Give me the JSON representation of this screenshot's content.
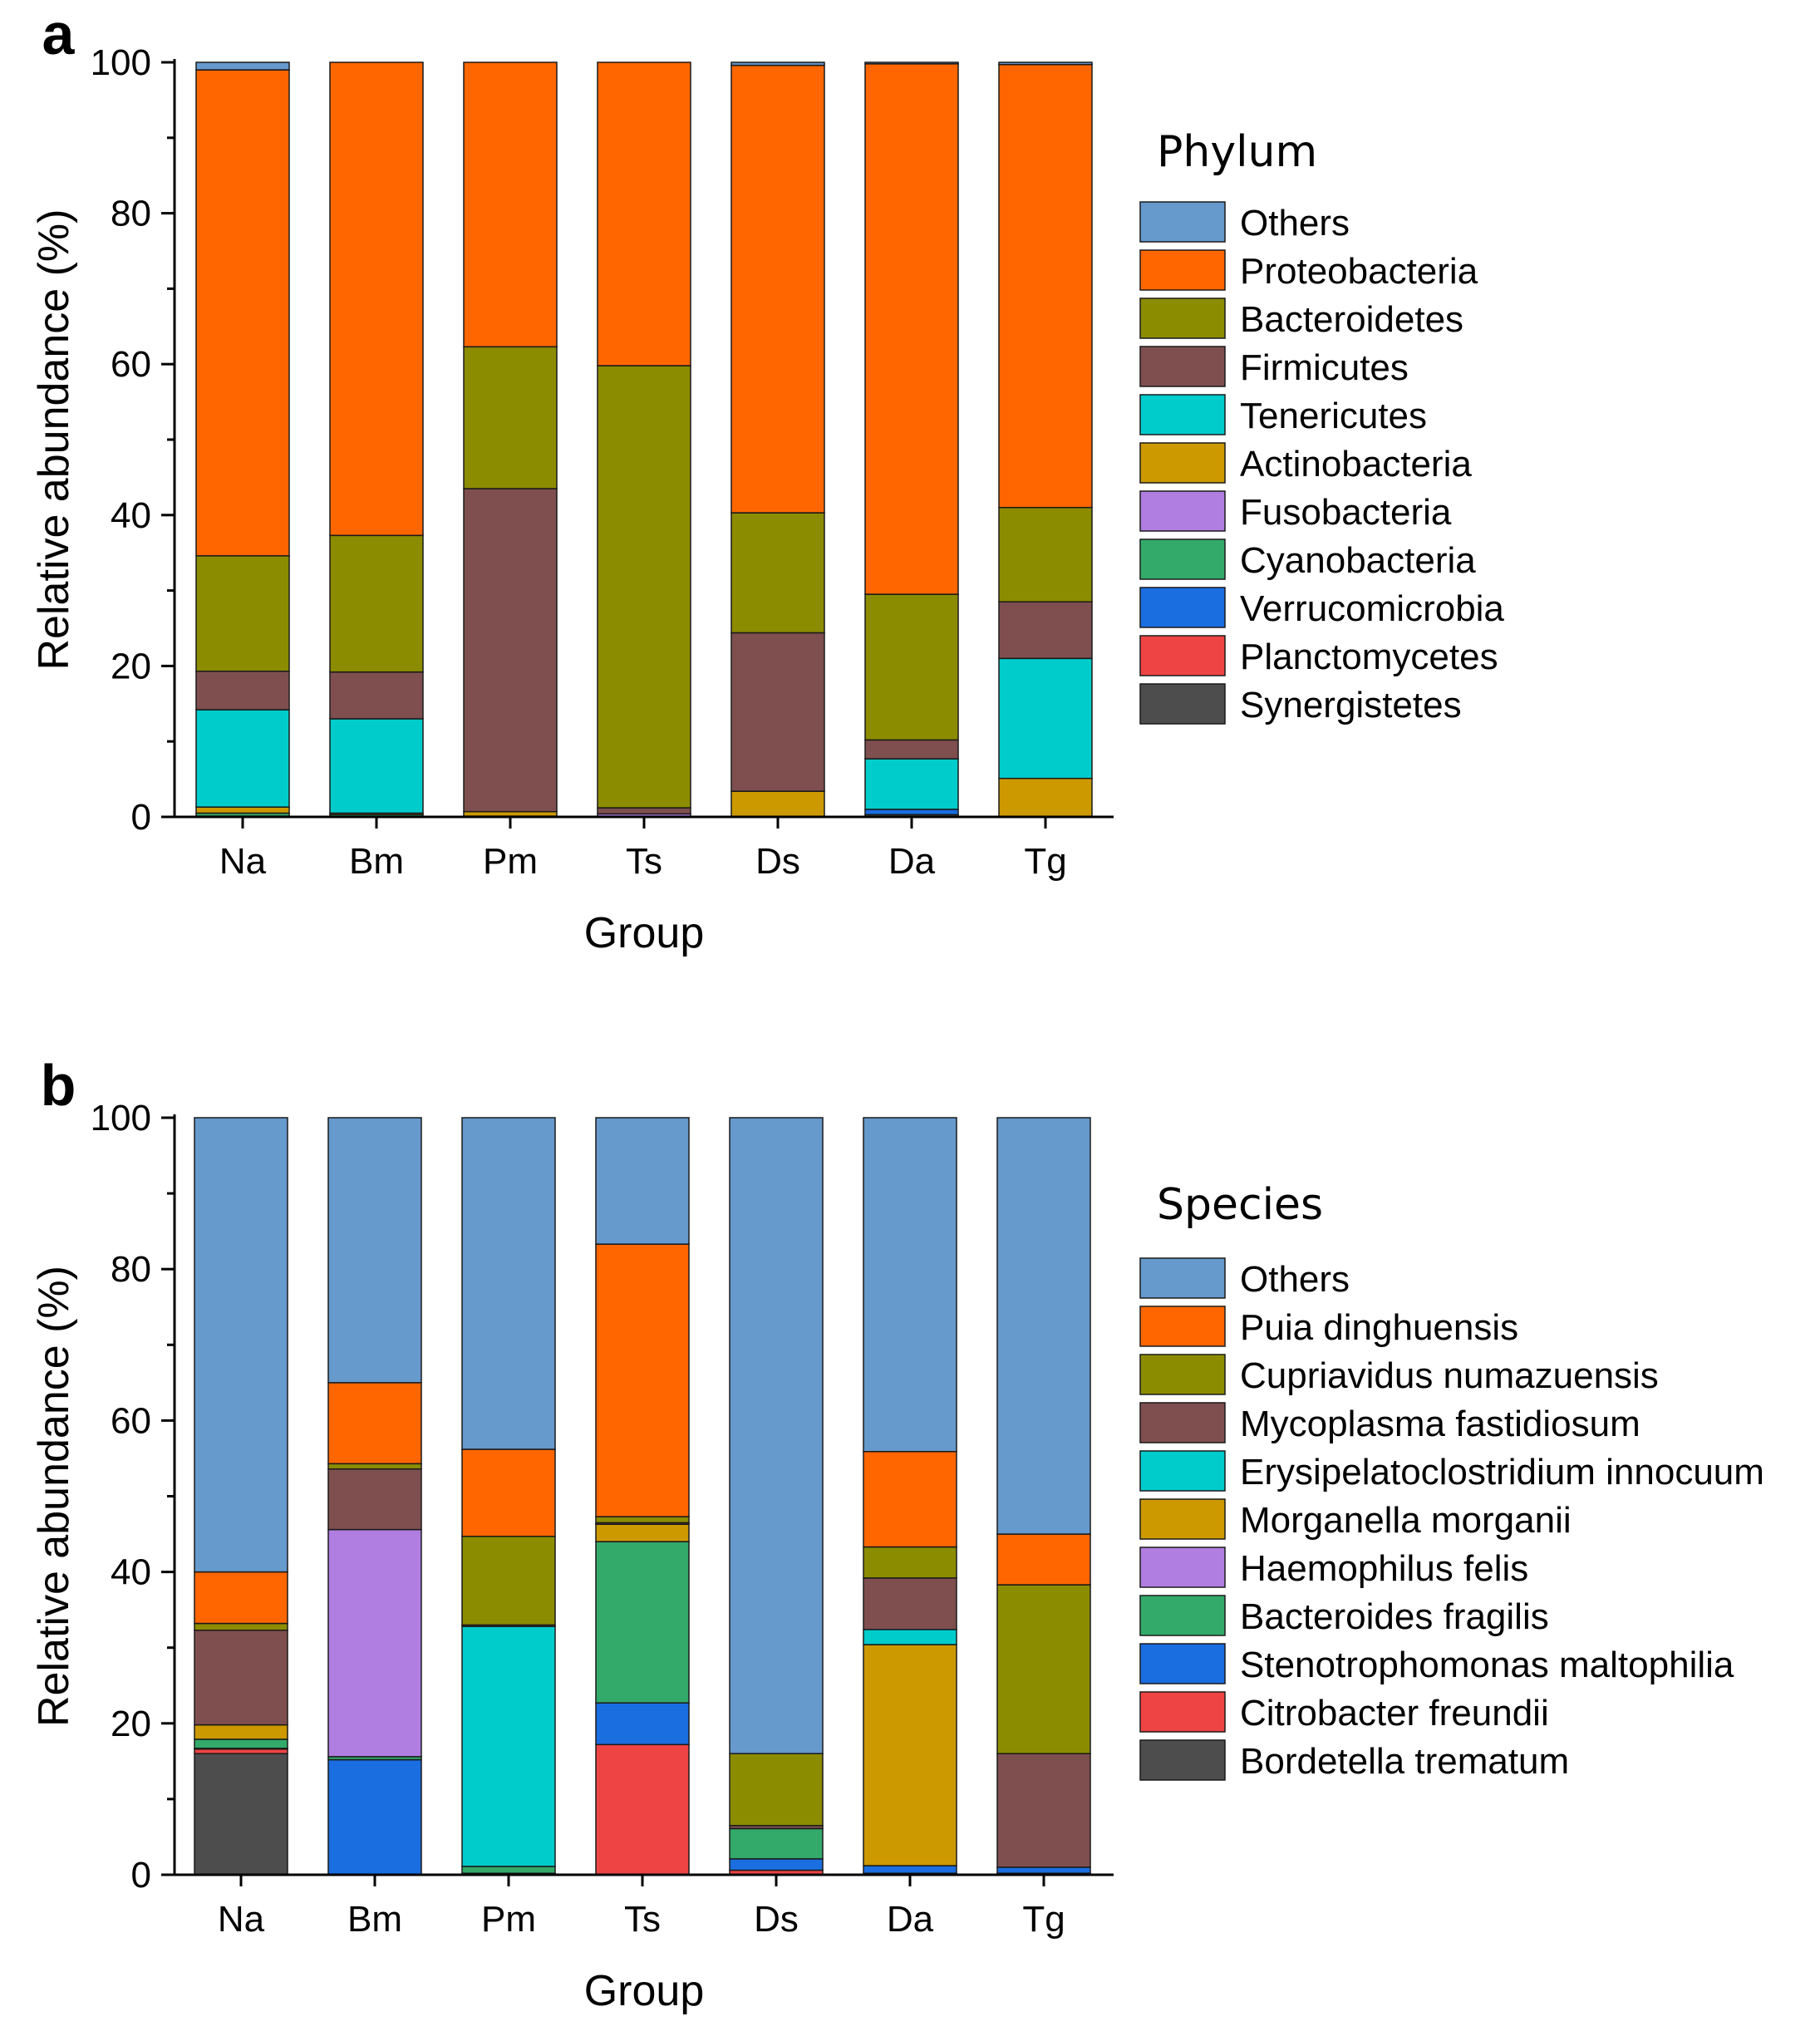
{
  "figure": {
    "series_colors": {
      "others": "#6699cc",
      "orange": "#ff6600",
      "olive": "#8c8c00",
      "brown": "#7f4f4f",
      "cyan": "#00cccc",
      "gold": "#cc9900",
      "violet": "#b07ee0",
      "green": "#33aa6a",
      "blue": "#1a6ee0",
      "red": "#ee4444",
      "gray": "#4d4d4d"
    }
  },
  "chart_data": [
    {
      "panel_label": "a",
      "type": "bar",
      "stacked": true,
      "title": "",
      "xlabel": "Group",
      "ylabel": "Relative abundance (%)",
      "ylim": [
        0,
        100
      ],
      "yticks": [
        "0",
        "20",
        "40",
        "60",
        "80",
        "100"
      ],
      "categories": [
        "Na",
        "Bm",
        "Pm",
        "Ts",
        "Ds",
        "Da",
        "Tg"
      ],
      "legend_title": "Phylum",
      "legend_position": "right",
      "series": [
        {
          "name": "Synergistetes",
          "color": "#4d4d4d",
          "values": [
            0.1,
            0,
            0,
            0,
            0,
            0.3,
            0
          ]
        },
        {
          "name": "Planctomycetes",
          "color": "#ee4444",
          "values": [
            0,
            0,
            0,
            0,
            0,
            0,
            0
          ]
        },
        {
          "name": "Verrucomicrobia",
          "color": "#1a6ee0",
          "values": [
            0,
            0,
            0,
            0,
            0,
            0.7,
            0
          ]
        },
        {
          "name": "Cyanobacteria",
          "color": "#33aa6a",
          "values": [
            0.4,
            0.3,
            0,
            0,
            0,
            0,
            0
          ]
        },
        {
          "name": "Fusobacteria",
          "color": "#b07ee0",
          "values": [
            0,
            0,
            0.1,
            0.4,
            0,
            0,
            0
          ]
        },
        {
          "name": "Actinobacteria",
          "color": "#cc9900",
          "values": [
            0.8,
            0.2,
            0.6,
            0,
            3.4,
            0,
            5.1
          ]
        },
        {
          "name": "Tenericutes",
          "color": "#00cccc",
          "values": [
            12.9,
            12.5,
            0,
            0,
            0,
            6.7,
            15.9
          ]
        },
        {
          "name": "Firmicutes",
          "color": "#7f4f4f",
          "values": [
            5.1,
            6.2,
            42.8,
            0.8,
            21.0,
            2.5,
            7.5
          ]
        },
        {
          "name": "Bacteroidetes",
          "color": "#8c8c00",
          "values": [
            15.3,
            18.1,
            18.8,
            58.6,
            15.9,
            19.3,
            12.5
          ]
        },
        {
          "name": "Proteobacteria",
          "color": "#ff6600",
          "values": [
            64.4,
            62.7,
            37.7,
            40.2,
            59.3,
            70.3,
            58.7
          ]
        },
        {
          "name": "Others",
          "color": "#6699cc",
          "values": [
            1.0,
            0,
            0,
            0,
            0.4,
            0.2,
            0.3
          ]
        }
      ],
      "legend_order": [
        "Others",
        "Proteobacteria",
        "Bacteroidetes",
        "Firmicutes",
        "Tenericutes",
        "Actinobacteria",
        "Fusobacteria",
        "Cyanobacteria",
        "Verrucomicrobia",
        "Planctomycetes",
        "Synergistetes"
      ]
    },
    {
      "panel_label": "b",
      "type": "bar",
      "stacked": true,
      "title": "",
      "xlabel": "Group",
      "ylabel": "Relative abundance (%)",
      "ylim": [
        0,
        100
      ],
      "yticks": [
        "0",
        "20",
        "40",
        "60",
        "80",
        "100"
      ],
      "categories": [
        "Na",
        "Bm",
        "Pm",
        "Ts",
        "Ds",
        "Da",
        "Tg"
      ],
      "legend_title": "Species",
      "legend_position": "right",
      "series": [
        {
          "name": "Bordetella trematum",
          "color": "#4d4d4d",
          "values": [
            16.0,
            0,
            0,
            0,
            0,
            0,
            0
          ]
        },
        {
          "name": "Citrobacter freundii",
          "color": "#ee4444",
          "values": [
            0.6,
            0,
            0,
            17.2,
            0.6,
            0.2,
            0.2
          ]
        },
        {
          "name": "Stenotrophomonas maltophilia",
          "color": "#1a6ee0",
          "values": [
            0.1,
            15.2,
            0.2,
            5.5,
            1.5,
            1.0,
            0.8
          ]
        },
        {
          "name": "Bacteroides fragilis",
          "color": "#33aa6a",
          "values": [
            1.2,
            0.4,
            0.9,
            21.3,
            4.0,
            0,
            0
          ]
        },
        {
          "name": "Haemophilus felis",
          "color": "#b07ee0",
          "values": [
            0,
            30.0,
            0,
            0,
            0,
            0,
            0
          ]
        },
        {
          "name": "Morganella morganii",
          "color": "#cc9900",
          "values": [
            1.9,
            0,
            0,
            2.3,
            0,
            29.2,
            0
          ]
        },
        {
          "name": "Erysipelatoclostridium innocuum",
          "color": "#00cccc",
          "values": [
            0,
            0,
            31.7,
            0,
            0,
            2.0,
            0
          ]
        },
        {
          "name": "Mycoplasma fastidiosum",
          "color": "#7f4f4f",
          "values": [
            12.5,
            8.0,
            0.2,
            0.2,
            0.4,
            6.8,
            15.0
          ]
        },
        {
          "name": "Cupriavidus numazuensis",
          "color": "#8c8c00",
          "values": [
            0.9,
            0.7,
            11.7,
            0.8,
            9.5,
            4.1,
            22.3
          ]
        },
        {
          "name": "Puia dinghuensis",
          "color": "#ff6600",
          "values": [
            6.8,
            10.7,
            11.5,
            36.0,
            0,
            12.6,
            6.7
          ]
        },
        {
          "name": "Others",
          "color": "#6699cc",
          "values": [
            60.0,
            35.0,
            43.8,
            16.7,
            84.0,
            44.1,
            55.0
          ]
        }
      ],
      "legend_order": [
        "Others",
        "Puia dinghuensis",
        "Cupriavidus numazuensis",
        "Mycoplasma fastidiosum",
        "Erysipelatoclostridium innocuum",
        "Morganella morganii",
        "Haemophilus felis",
        "Bacteroides fragilis",
        "Stenotrophomonas maltophilia",
        "Citrobacter freundii",
        "Bordetella trematum"
      ]
    }
  ]
}
